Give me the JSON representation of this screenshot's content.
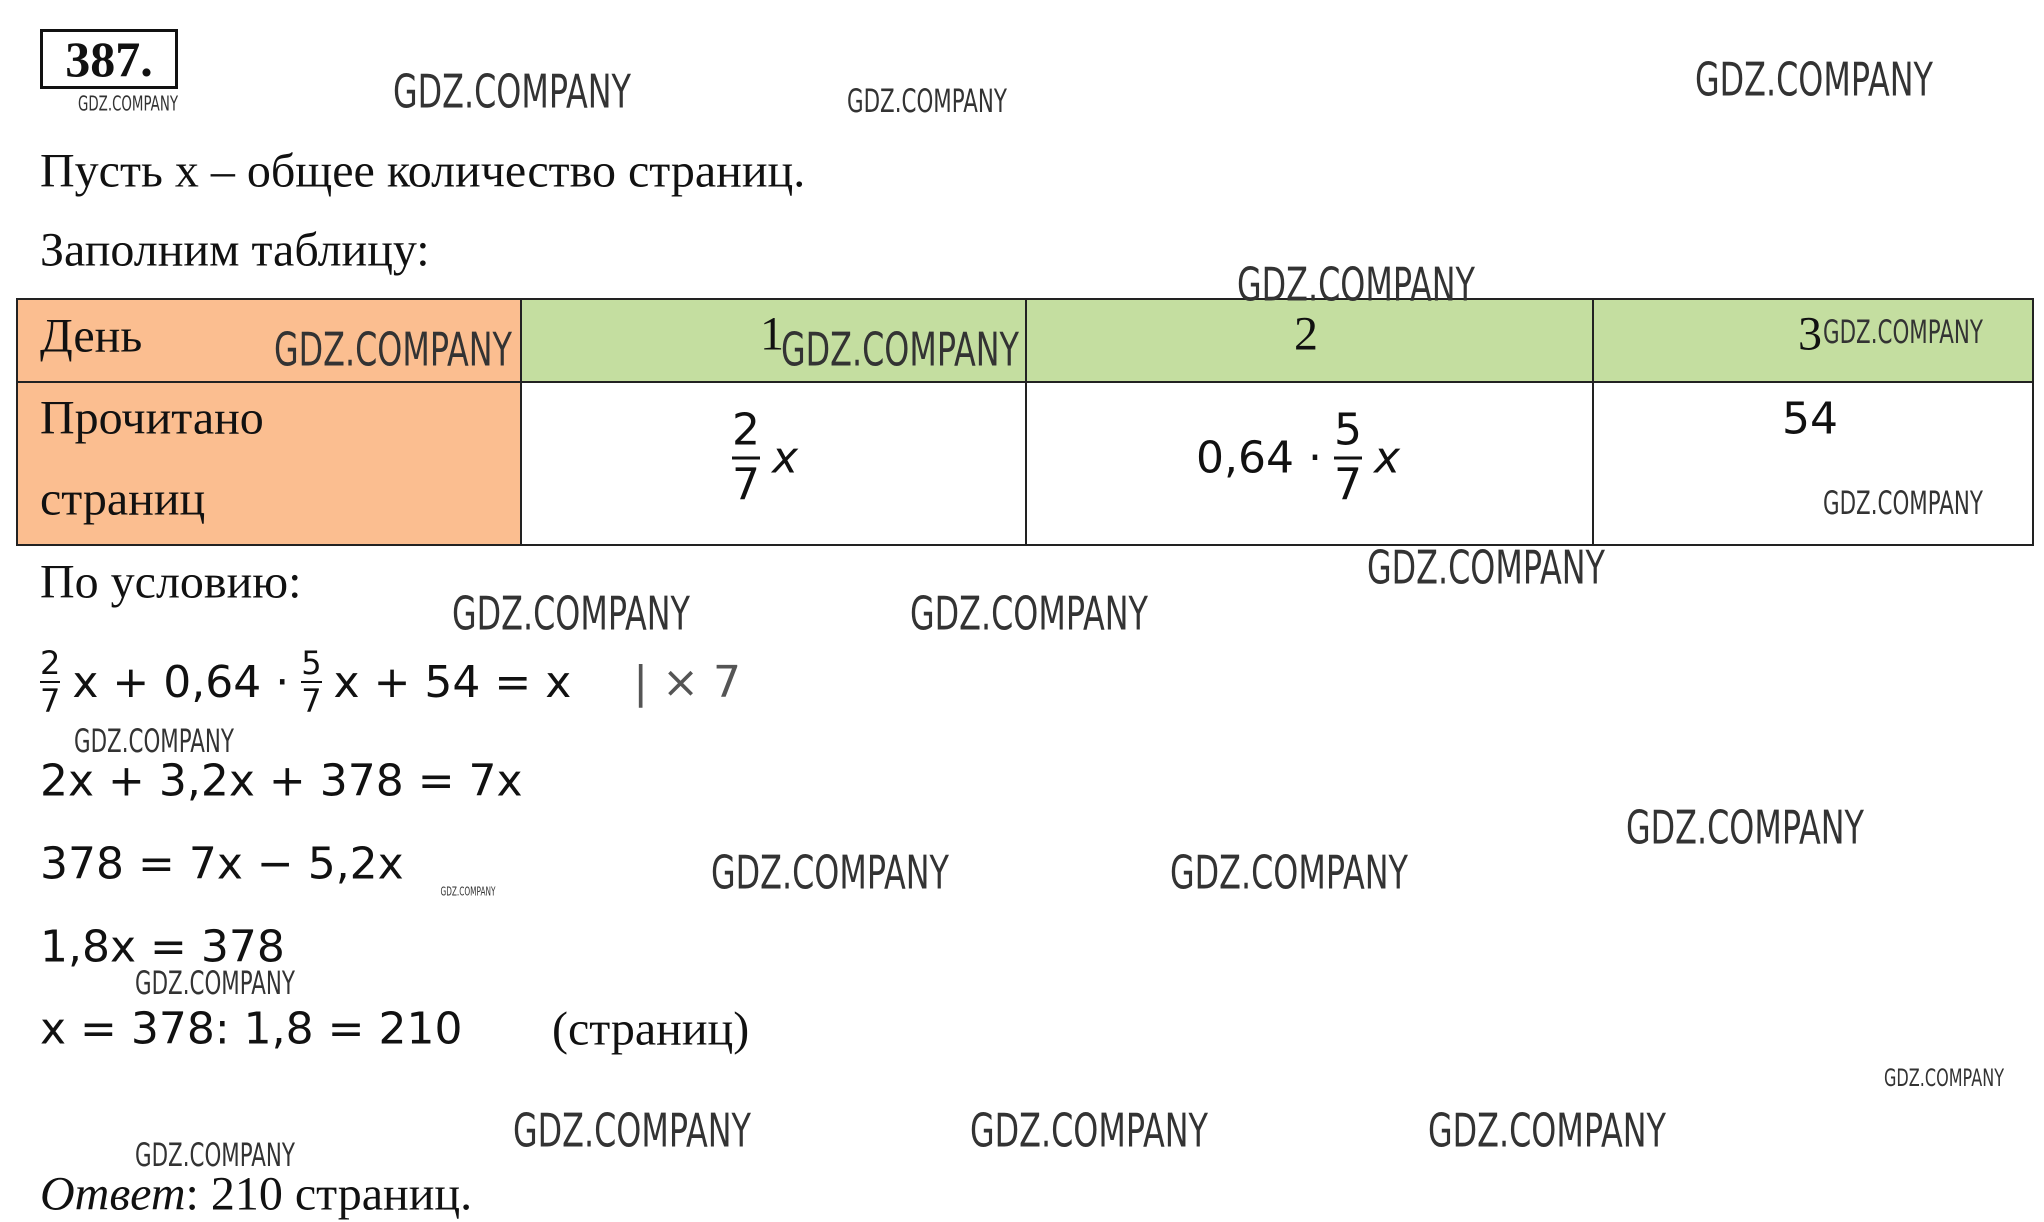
{
  "number": "387.",
  "watermark": "GDZ.COMPANY",
  "intro": [
    "Пусть x – общее количество страниц.",
    "Заполним таблицу:"
  ],
  "table": {
    "header": [
      "День",
      "1",
      "2",
      "3"
    ],
    "row_label": [
      "Прочитано",
      "страниц"
    ],
    "cells": [
      {
        "numerator": "2",
        "denominator": "7",
        "variable": "x"
      },
      {
        "prefix": "0,64 ·",
        "numerator": "5",
        "denominator": "7",
        "variable": "x"
      },
      {
        "text": "54"
      }
    ]
  },
  "condition": "По условию:",
  "equation1": {
    "f1_num": "2",
    "f1_den": "7",
    "mid": "x + 0,64 ·",
    "f2_num": "5",
    "f2_den": "7",
    "rest": "x + 54 = x",
    "note": "| × 7"
  },
  "equations": [
    "2x + 3,2x + 378 = 7x",
    "378 = 7x − 5,2x",
    "1,8x = 378",
    "x = 378: 1,8 = 210"
  ],
  "unit": "(страниц)",
  "answer": {
    "label": "Ответ",
    "text": ": 210 страниц."
  }
}
